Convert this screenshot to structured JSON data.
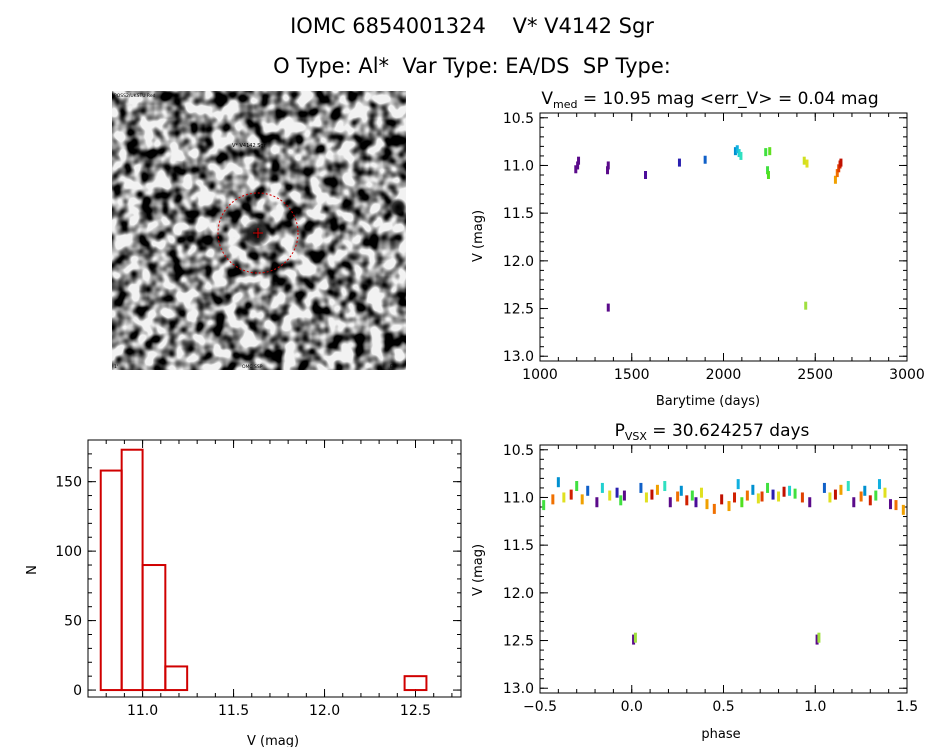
{
  "header": {
    "title": "IOMC 6854001324    V* V4142 Sgr",
    "subtitle": "O Type: Al*  Var Type: EA/DS  SP Type:"
  },
  "image_panel": {
    "label_top_left": "POSS2/UKSTU Red",
    "label_target": "V* V4142 Sgr",
    "label_bottom_left": "1'",
    "label_bottom_center": "OMC SSP",
    "label_bottom_right": "E",
    "label_north": "N",
    "colors": {
      "circle": "#d00000",
      "label": "#3030c0"
    }
  },
  "chart_data": [
    {
      "id": "lightcurve",
      "type": "scatter",
      "title_parts": {
        "pre": "V",
        "sub": "med",
        "post": " = 10.95 mag <err_V> = 0.04 mag"
      },
      "xlabel": "Barytime (days)",
      "ylabel": "V (mag)",
      "xlim": [
        1000,
        3000
      ],
      "ylim": [
        13.05,
        10.45
      ],
      "xticks": [
        1000,
        1500,
        2000,
        2500,
        3000
      ],
      "yticks": [
        10.5,
        11.0,
        11.5,
        12.0,
        12.5,
        13.0
      ],
      "ytick_labels": [
        "10.5",
        "11.0",
        "11.5",
        "12.0",
        "12.5",
        "13.0"
      ],
      "points": [
        {
          "x": 1195,
          "y": 11.04,
          "c": "#5a0a8a"
        },
        {
          "x": 1205,
          "y": 11.0,
          "c": "#5a0a8a"
        },
        {
          "x": 1210,
          "y": 10.95,
          "c": "#5a0a8a"
        },
        {
          "x": 1368,
          "y": 11.05,
          "c": "#5a0a8a"
        },
        {
          "x": 1372,
          "y": 11.0,
          "c": "#5a0a8a"
        },
        {
          "x": 1372,
          "y": 12.49,
          "c": "#5a0a8a"
        },
        {
          "x": 1575,
          "y": 11.1,
          "c": "#4b0c9a"
        },
        {
          "x": 1760,
          "y": 10.97,
          "c": "#2a20b0"
        },
        {
          "x": 1900,
          "y": 10.94,
          "c": "#1060c8"
        },
        {
          "x": 2065,
          "y": 10.85,
          "c": "#0090d0"
        },
        {
          "x": 2075,
          "y": 10.83,
          "c": "#10b0e0"
        },
        {
          "x": 2085,
          "y": 10.87,
          "c": "#20d0d0"
        },
        {
          "x": 2095,
          "y": 10.9,
          "c": "#30e0c0"
        },
        {
          "x": 2230,
          "y": 10.86,
          "c": "#40e040"
        },
        {
          "x": 2240,
          "y": 11.05,
          "c": "#40e040"
        },
        {
          "x": 2245,
          "y": 11.1,
          "c": "#50e020"
        },
        {
          "x": 2252,
          "y": 10.85,
          "c": "#60e020"
        },
        {
          "x": 2440,
          "y": 10.95,
          "c": "#d0e020"
        },
        {
          "x": 2455,
          "y": 10.98,
          "c": "#e0e020"
        },
        {
          "x": 2448,
          "y": 12.47,
          "c": "#a0e040"
        },
        {
          "x": 2610,
          "y": 11.15,
          "c": "#f0a000"
        },
        {
          "x": 2620,
          "y": 11.08,
          "c": "#f07000"
        },
        {
          "x": 2628,
          "y": 11.03,
          "c": "#e04000"
        },
        {
          "x": 2635,
          "y": 10.99,
          "c": "#d02000"
        },
        {
          "x": 2640,
          "y": 10.97,
          "c": "#c01000"
        }
      ]
    },
    {
      "id": "histogram",
      "type": "bar",
      "xlabel": "V (mag)",
      "ylabel": "N",
      "xlim": [
        10.7,
        12.75
      ],
      "ylim": [
        -5,
        180
      ],
      "xticks": [
        11.0,
        11.5,
        12.0,
        12.5
      ],
      "xtick_labels": [
        "11.0",
        "11.5",
        "12.0",
        "12.5"
      ],
      "yticks": [
        0,
        50,
        100,
        150
      ],
      "ytick_labels": [
        "0",
        "50",
        "100",
        "150"
      ],
      "bins": [
        {
          "x0": 10.77,
          "x1": 10.885,
          "n": 158
        },
        {
          "x0": 10.885,
          "x1": 11.0,
          "n": 173
        },
        {
          "x0": 11.0,
          "x1": 11.125,
          "n": 90
        },
        {
          "x0": 11.125,
          "x1": 11.245,
          "n": 17
        },
        {
          "x0": 12.44,
          "x1": 12.56,
          "n": 10
        }
      ],
      "color": "#d00000"
    },
    {
      "id": "phased",
      "type": "scatter",
      "title_parts": {
        "pre": "P",
        "sub": "VSX",
        "post": " = 30.624257 days"
      },
      "xlabel": "phase",
      "ylabel": "V (mag)",
      "xlim": [
        -0.5,
        1.5
      ],
      "ylim": [
        13.05,
        10.45
      ],
      "xticks": [
        -0.5,
        0.0,
        0.5,
        1.0,
        1.5
      ],
      "xtick_labels": [
        "−0.5",
        "0.0",
        "0.5",
        "1.0",
        "1.5"
      ],
      "yticks": [
        10.5,
        11.0,
        11.5,
        12.0,
        12.5,
        13.0
      ],
      "ytick_labels": [
        "10.5",
        "11.0",
        "11.5",
        "12.0",
        "12.5",
        "13.0"
      ],
      "points": [
        {
          "x": -0.48,
          "y": 11.08,
          "c": "#40e040"
        },
        {
          "x": -0.43,
          "y": 11.02,
          "c": "#f07000"
        },
        {
          "x": -0.4,
          "y": 10.84,
          "c": "#0090d0"
        },
        {
          "x": -0.37,
          "y": 11.0,
          "c": "#e0e020"
        },
        {
          "x": -0.33,
          "y": 10.97,
          "c": "#d02000"
        },
        {
          "x": -0.3,
          "y": 10.88,
          "c": "#40e040"
        },
        {
          "x": -0.27,
          "y": 11.02,
          "c": "#f0a000"
        },
        {
          "x": -0.24,
          "y": 10.93,
          "c": "#1060c8"
        },
        {
          "x": -0.19,
          "y": 11.05,
          "c": "#5a0a8a"
        },
        {
          "x": -0.16,
          "y": 10.9,
          "c": "#20d0d0"
        },
        {
          "x": -0.12,
          "y": 10.98,
          "c": "#e0e020"
        },
        {
          "x": -0.08,
          "y": 10.95,
          "c": "#2a20b0"
        },
        {
          "x": -0.06,
          "y": 11.03,
          "c": "#40e040"
        },
        {
          "x": -0.04,
          "y": 10.98,
          "c": "#5a0a8a"
        },
        {
          "x": 0.01,
          "y": 12.49,
          "c": "#5a0a8a"
        },
        {
          "x": 0.02,
          "y": 12.47,
          "c": "#a0e040"
        },
        {
          "x": 0.05,
          "y": 10.9,
          "c": "#1060c8"
        },
        {
          "x": 0.08,
          "y": 11.0,
          "c": "#e0e020"
        },
        {
          "x": 0.11,
          "y": 10.97,
          "c": "#c01000"
        },
        {
          "x": 0.14,
          "y": 10.92,
          "c": "#f0a000"
        },
        {
          "x": 0.18,
          "y": 10.88,
          "c": "#30e0c0"
        },
        {
          "x": 0.21,
          "y": 11.05,
          "c": "#5a0a8a"
        },
        {
          "x": 0.25,
          "y": 10.99,
          "c": "#f07000"
        },
        {
          "x": 0.27,
          "y": 10.93,
          "c": "#0090d0"
        },
        {
          "x": 0.3,
          "y": 11.03,
          "c": "#d02000"
        },
        {
          "x": 0.33,
          "y": 10.98,
          "c": "#40e040"
        },
        {
          "x": 0.35,
          "y": 11.05,
          "c": "#4b0c9a"
        },
        {
          "x": 0.38,
          "y": 10.95,
          "c": "#e0e020"
        },
        {
          "x": 0.41,
          "y": 11.07,
          "c": "#f0a000"
        },
        {
          "x": 0.45,
          "y": 11.12,
          "c": "#f07000"
        },
        {
          "x": 0.49,
          "y": 11.02,
          "c": "#c01000"
        },
        {
          "x": 0.53,
          "y": 11.09,
          "c": "#f0a000"
        },
        {
          "x": 0.56,
          "y": 11.0,
          "c": "#d02000"
        },
        {
          "x": 0.58,
          "y": 10.86,
          "c": "#10b0e0"
        },
        {
          "x": 0.6,
          "y": 11.05,
          "c": "#50e020"
        },
        {
          "x": 0.63,
          "y": 10.98,
          "c": "#f07000"
        },
        {
          "x": 0.66,
          "y": 10.92,
          "c": "#0090d0"
        },
        {
          "x": 0.69,
          "y": 11.01,
          "c": "#e0e020"
        },
        {
          "x": 0.71,
          "y": 10.99,
          "c": "#e04000"
        },
        {
          "x": 0.74,
          "y": 10.9,
          "c": "#40e040"
        },
        {
          "x": 0.77,
          "y": 10.97,
          "c": "#2a20b0"
        },
        {
          "x": 0.8,
          "y": 10.99,
          "c": "#e0e020"
        },
        {
          "x": 0.83,
          "y": 10.94,
          "c": "#c01000"
        },
        {
          "x": 0.86,
          "y": 10.93,
          "c": "#20d0d0"
        },
        {
          "x": 0.89,
          "y": 10.96,
          "c": "#40e040"
        },
        {
          "x": 0.93,
          "y": 11.0,
          "c": "#e04000"
        },
        {
          "x": 0.97,
          "y": 11.05,
          "c": "#5a0a8a"
        },
        {
          "x": 1.01,
          "y": 12.49,
          "c": "#5a0a8a"
        },
        {
          "x": 1.02,
          "y": 12.47,
          "c": "#a0e040"
        },
        {
          "x": 1.05,
          "y": 10.9,
          "c": "#1060c8"
        },
        {
          "x": 1.08,
          "y": 11.0,
          "c": "#e0e020"
        },
        {
          "x": 1.11,
          "y": 10.97,
          "c": "#c01000"
        },
        {
          "x": 1.14,
          "y": 10.92,
          "c": "#f0a000"
        },
        {
          "x": 1.18,
          "y": 10.88,
          "c": "#30e0c0"
        },
        {
          "x": 1.21,
          "y": 11.05,
          "c": "#5a0a8a"
        },
        {
          "x": 1.25,
          "y": 10.99,
          "c": "#f07000"
        },
        {
          "x": 1.27,
          "y": 10.93,
          "c": "#0090d0"
        },
        {
          "x": 1.3,
          "y": 11.03,
          "c": "#d02000"
        },
        {
          "x": 1.33,
          "y": 10.98,
          "c": "#40e040"
        },
        {
          "x": 1.35,
          "y": 10.86,
          "c": "#10b0e0"
        },
        {
          "x": 1.38,
          "y": 10.95,
          "c": "#e0e020"
        },
        {
          "x": 1.41,
          "y": 11.07,
          "c": "#5a0a8a"
        },
        {
          "x": 1.44,
          "y": 11.08,
          "c": "#f07000"
        },
        {
          "x": 1.48,
          "y": 11.13,
          "c": "#f0a000"
        }
      ]
    }
  ]
}
